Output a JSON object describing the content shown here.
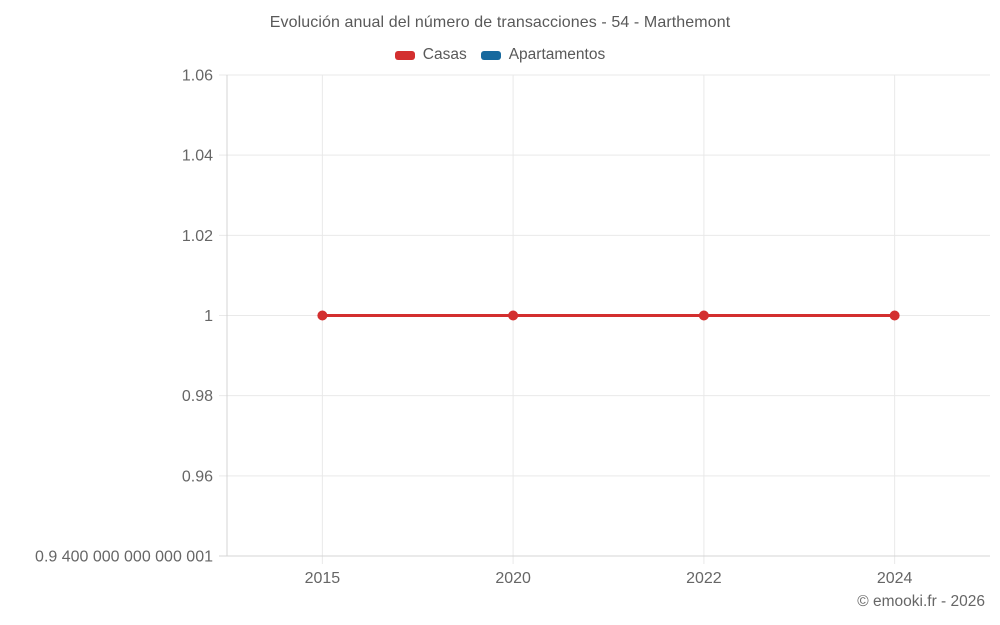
{
  "footer": "© emooki.fr - 2026",
  "chart_data": {
    "type": "line",
    "title": "Evolución anual del número de transacciones - 54 - Marthemont",
    "categories": [
      "2015",
      "2020",
      "2022",
      "2024"
    ],
    "series": [
      {
        "name": "Casas",
        "color": "#d32f2f",
        "values": [
          1,
          1,
          1,
          1
        ]
      },
      {
        "name": "Apartamentos",
        "color": "#17699e",
        "values": []
      }
    ],
    "xlabel": "",
    "ylabel": "",
    "ylim": [
      0.9400000000000001,
      1.06
    ],
    "yticks": [
      {
        "value": 1.06,
        "label": "1.06"
      },
      {
        "value": 1.04,
        "label": "1.04"
      },
      {
        "value": 1.02,
        "label": "1.02"
      },
      {
        "value": 1,
        "label": "1"
      },
      {
        "value": 0.98,
        "label": "0.98"
      },
      {
        "value": 0.96,
        "label": "0.96"
      },
      {
        "value": 0.9400000000000001,
        "label": "0.9 400 000 000 000 001"
      }
    ],
    "grid": true,
    "legend_position": "top"
  }
}
